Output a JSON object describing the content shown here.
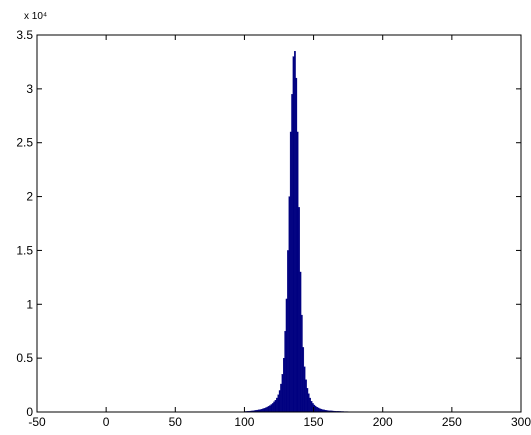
{
  "chart_data": {
    "type": "histogram",
    "y_multiplier": "x 10⁴",
    "color": "#000080",
    "bins": [
      100,
      101,
      102,
      103,
      104,
      105,
      106,
      107,
      108,
      109,
      110,
      111,
      112,
      113,
      114,
      115,
      116,
      117,
      118,
      119,
      120,
      121,
      122,
      123,
      124,
      125,
      126,
      127,
      128,
      129,
      130,
      131,
      132,
      133,
      134,
      135,
      136,
      137,
      138,
      139,
      140,
      141,
      142,
      143,
      144,
      145,
      146,
      147,
      148,
      149,
      150,
      151,
      152,
      153,
      154,
      155,
      156,
      157,
      158,
      159,
      160,
      161,
      162,
      163,
      164,
      165,
      166,
      167,
      168,
      169,
      170,
      171,
      172,
      173,
      174,
      175,
      176
    ],
    "values": [
      0.005,
      0.006,
      0.007,
      0.008,
      0.009,
      0.01,
      0.012,
      0.014,
      0.016,
      0.018,
      0.02,
      0.023,
      0.026,
      0.03,
      0.035,
      0.04,
      0.046,
      0.053,
      0.06,
      0.07,
      0.08,
      0.095,
      0.11,
      0.13,
      0.16,
      0.2,
      0.26,
      0.35,
      0.5,
      0.75,
      1.05,
      1.5,
      2.0,
      2.6,
      2.95,
      3.3,
      3.35,
      3.1,
      2.6,
      1.9,
      1.3,
      0.9,
      0.6,
      0.42,
      0.3,
      0.22,
      0.17,
      0.13,
      0.1,
      0.08,
      0.065,
      0.055,
      0.045,
      0.038,
      0.032,
      0.027,
      0.023,
      0.02,
      0.017,
      0.015,
      0.013,
      0.012,
      0.011,
      0.01,
      0.009,
      0.008,
      0.007,
      0.007,
      0.006,
      0.006,
      0.005,
      0.005,
      0.004,
      0.004,
      0.004,
      0.003
    ],
    "xlim": [
      -50,
      300
    ],
    "xticks": [
      -50,
      0,
      50,
      100,
      150,
      200,
      250,
      300
    ],
    "ylim": [
      0,
      3.5
    ],
    "yticks": [
      0,
      0.5,
      1,
      1.5,
      2,
      2.5,
      3,
      3.5
    ],
    "grid": false
  }
}
